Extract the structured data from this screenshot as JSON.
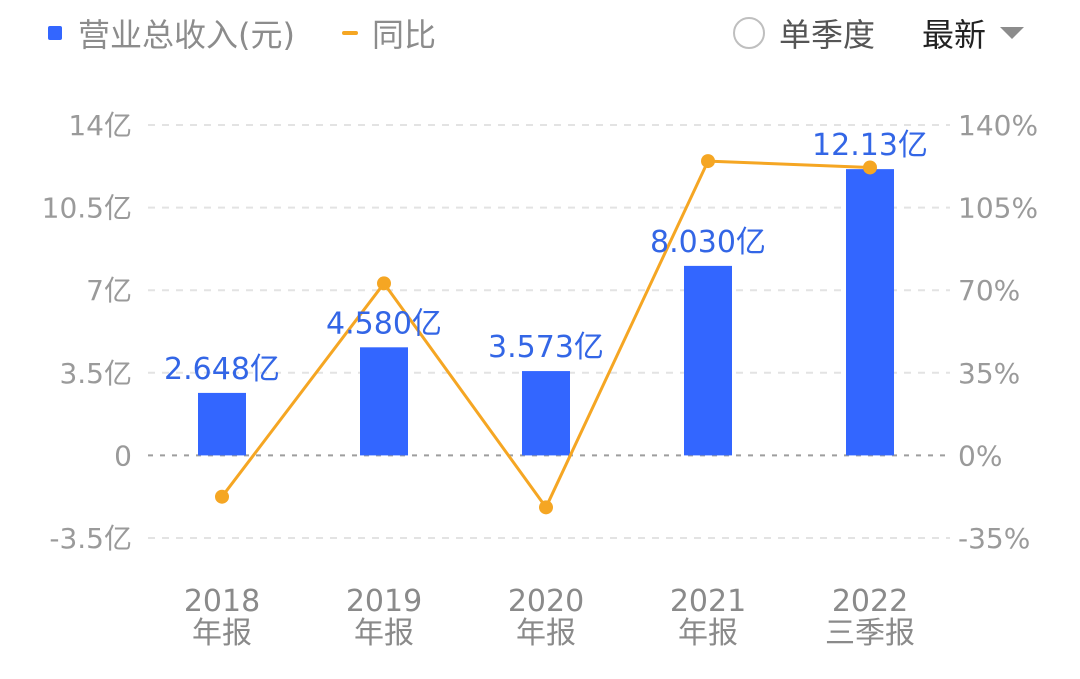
{
  "header": {
    "legend_bar_label": "营业总收入(元)",
    "legend_line_label": "同比",
    "toggle_label": "单季度",
    "dropdown_label": "最新"
  },
  "chart_data": {
    "type": "bar",
    "categories": [
      [
        "2018",
        "年报"
      ],
      [
        "2019",
        "年报"
      ],
      [
        "2020",
        "年报"
      ],
      [
        "2021",
        "年报"
      ],
      [
        "2022",
        "三季报"
      ]
    ],
    "series": [
      {
        "name": "营业总收入(元)",
        "type": "bar",
        "axis": "left",
        "values": [
          2.648,
          4.58,
          3.573,
          8.03,
          12.13
        ],
        "labels": [
          "2.648亿",
          "4.580亿",
          "3.573亿",
          "8.030亿",
          "12.13亿"
        ]
      },
      {
        "name": "同比",
        "type": "line",
        "axis": "right",
        "values": [
          -17.5,
          72.9,
          -22.0,
          124.7,
          122.0
        ]
      }
    ],
    "left_axis": {
      "ticks": [
        14,
        10.5,
        7,
        3.5,
        0,
        -3.5
      ],
      "tick_labels": [
        "14亿",
        "10.5亿",
        "7亿",
        "3.5亿",
        "0",
        "-3.5亿"
      ],
      "range": [
        -3.5,
        14
      ]
    },
    "right_axis": {
      "ticks": [
        140,
        105,
        70,
        35,
        0,
        -35
      ],
      "tick_labels": [
        "140%",
        "105%",
        "70%",
        "35%",
        "0%",
        "-35%"
      ],
      "range": [
        -35,
        140
      ]
    },
    "grid": true,
    "legend": "top-left",
    "colors": {
      "bar": "#3366ff",
      "line": "#f5a623",
      "grid": "#e3e3e3",
      "zero": "#9e9e9e"
    }
  }
}
